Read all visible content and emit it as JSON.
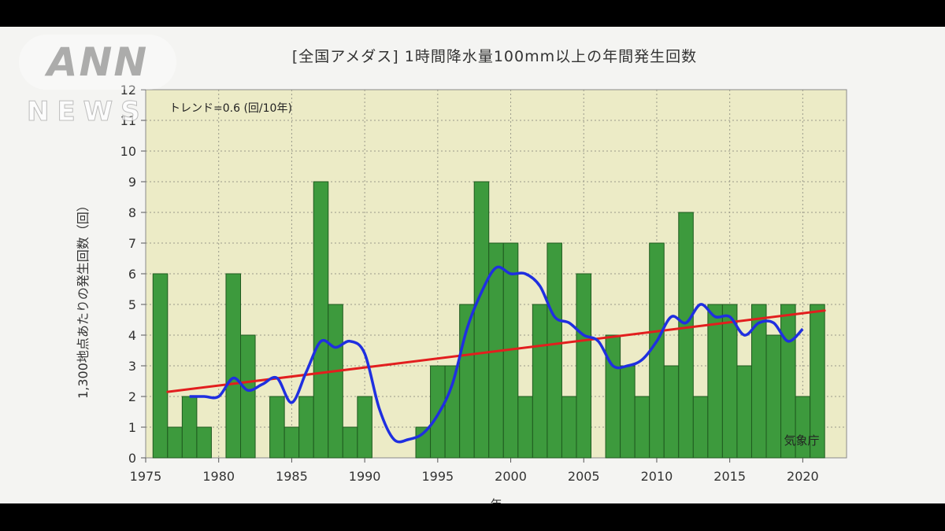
{
  "watermark": {
    "main": "ANN",
    "sub": "NEWS"
  },
  "chart_data": {
    "type": "bar",
    "title": "[全国アメダス] 1時間降水量100mm以上の年間発生回数",
    "xlabel": "年",
    "ylabel": "1,300地点あたりの発生回数（回）",
    "trend_label": "トレンド=0.6 (回/10年)",
    "source": "気象庁",
    "xlim": [
      1975,
      2023
    ],
    "ylim": [
      0,
      12
    ],
    "xticks": [
      1975,
      1980,
      1985,
      1990,
      1995,
      2000,
      2005,
      2010,
      2015,
      2020
    ],
    "yticks": [
      0,
      1,
      2,
      3,
      4,
      5,
      6,
      7,
      8,
      9,
      10,
      11,
      12
    ],
    "grid": true,
    "colors": {
      "bars": "#3d9a3d",
      "bar_edge": "#1f5a1f",
      "moving_average": "#1f2fe0",
      "trend": "#e21e1e",
      "plot_bg": "#ecebc6"
    },
    "series": [
      {
        "type": "bar",
        "x": [
          1976,
          1977,
          1978,
          1979,
          1980,
          1981,
          1982,
          1983,
          1984,
          1985,
          1986,
          1987,
          1988,
          1989,
          1990,
          1991,
          1992,
          1993,
          1994,
          1995,
          1996,
          1997,
          1998,
          1999,
          2000,
          2001,
          2002,
          2003,
          2004,
          2005,
          2006,
          2007,
          2008,
          2009,
          2010,
          2011,
          2012,
          2013,
          2014,
          2015,
          2016,
          2017,
          2018,
          2019,
          2020,
          2021,
          2022
        ],
        "values": [
          6,
          1,
          2,
          1,
          0,
          6,
          4,
          0,
          2,
          1,
          2,
          9,
          5,
          1,
          2,
          0,
          0,
          0,
          1,
          3,
          3,
          5,
          9,
          7,
          7,
          2,
          5,
          7,
          2,
          6,
          0,
          4,
          3,
          2,
          7,
          3,
          8,
          2,
          5,
          5,
          3,
          5,
          4,
          5,
          2,
          5,
          0
        ]
      },
      {
        "type": "line",
        "x": [
          1978,
          1979,
          1980,
          1981,
          1982,
          1983,
          1984,
          1985,
          1986,
          1987,
          1988,
          1989,
          1990,
          1991,
          1992,
          1993,
          1994,
          1995,
          1996,
          1997,
          1998,
          1999,
          2000,
          2001,
          2002,
          2003,
          2004,
          2005,
          2006,
          2007,
          2008,
          2009,
          2010,
          2011,
          2012,
          2013,
          2014,
          2015,
          2016,
          2017,
          2018,
          2019,
          2020
        ],
        "values": [
          2.0,
          2.0,
          2.0,
          2.6,
          2.2,
          2.4,
          2.6,
          1.8,
          2.8,
          3.8,
          3.6,
          3.8,
          3.4,
          1.6,
          0.6,
          0.6,
          0.8,
          1.4,
          2.4,
          4.2,
          5.4,
          6.2,
          6.0,
          6.0,
          5.6,
          4.6,
          4.4,
          4.0,
          3.8,
          3.0,
          3.0,
          3.2,
          3.8,
          4.6,
          4.4,
          5.0,
          4.6,
          4.6,
          4.0,
          4.4,
          4.4,
          3.8,
          4.2
        ]
      },
      {
        "type": "line",
        "x": [
          1976.5,
          2021.5
        ],
        "values": [
          2.15,
          4.8
        ]
      }
    ]
  }
}
